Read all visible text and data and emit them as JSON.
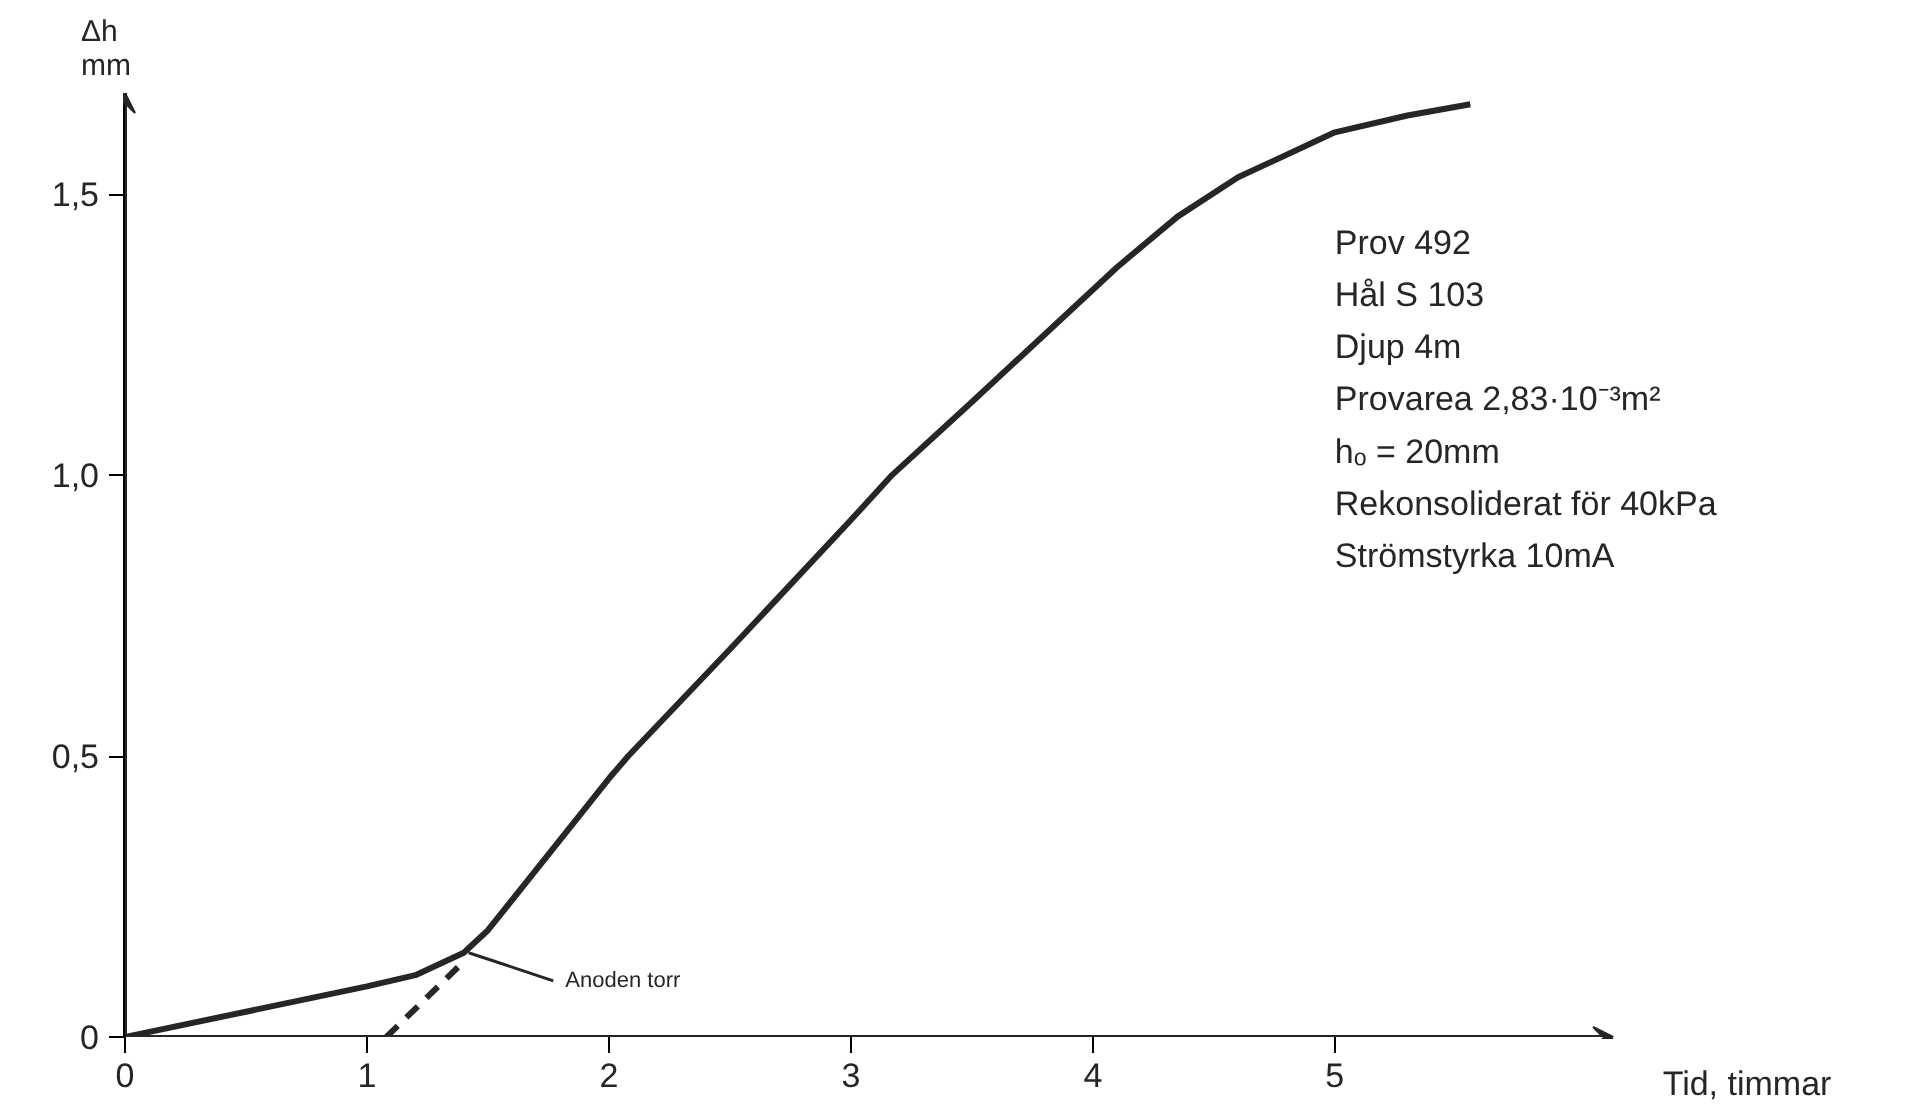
{
  "chart_data": {
    "type": "line",
    "xlabel": "Tid, timmar",
    "ylabel": "Δh\nmm",
    "xlim": [
      0,
      6.15
    ],
    "ylim": [
      0,
      1.68
    ],
    "xticks": [
      0,
      1,
      2,
      3,
      4,
      5
    ],
    "yticks": [
      0,
      {
        "value": 0.5,
        "label": "0,5"
      },
      {
        "value": 1.0,
        "label": "1,0"
      },
      {
        "value": 1.5,
        "label": "1,5"
      }
    ],
    "grid": false,
    "marker": "none",
    "series": [
      {
        "color": "#262626",
        "line_style": "solid",
        "x": [
          0,
          0.5,
          1,
          1.2,
          1.4,
          1.5,
          2,
          2.08,
          2.5,
          3,
          3.17,
          3.5,
          4.1,
          4.35,
          4.6,
          5,
          5.3,
          5.56
        ],
        "values": [
          0,
          0.045,
          0.09,
          0.11,
          0.15,
          0.19,
          0.46,
          0.5,
          0.69,
          0.92,
          1.0,
          1.13,
          1.37,
          1.46,
          1.53,
          1.61,
          1.64,
          1.66
        ]
      },
      {
        "color": "#262626",
        "line_style": "dashed",
        "x": [
          1.08,
          1.39
        ],
        "values": [
          0,
          0.13
        ]
      }
    ],
    "annotations": [
      {
        "text": "Anoden torr",
        "x": 1.42,
        "y": 0.15
      },
      "Prov 492",
      "Hål S 103",
      "Djup 4m",
      "Provarea 2,83·10⁻³m²",
      "hₒ = 20mm",
      "Rekonsoliderat för 40kPa",
      "Strömstyrka 10mA"
    ]
  }
}
